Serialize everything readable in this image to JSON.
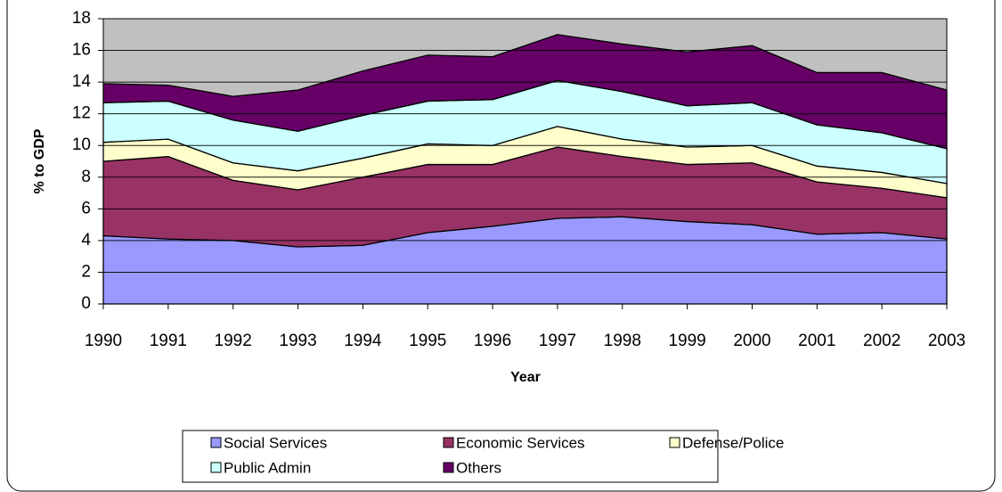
{
  "chart_data": {
    "type": "stacked_area",
    "xlabel": "Year",
    "ylabel": "% to GDP",
    "categories": [
      "1990",
      "1991",
      "1992",
      "1993",
      "1994",
      "1995",
      "1996",
      "1997",
      "1998",
      "1999",
      "2000",
      "2001",
      "2002",
      "2003"
    ],
    "series": [
      {
        "name": "Social Services",
        "color": "#9999ff",
        "values": [
          4.3,
          4.1,
          4.0,
          3.6,
          3.7,
          4.5,
          4.9,
          5.4,
          5.5,
          5.2,
          5.0,
          4.4,
          4.5,
          4.1
        ]
      },
      {
        "name": "Economic Services",
        "color": "#993366",
        "values": [
          4.7,
          5.2,
          3.8,
          3.6,
          4.3,
          4.3,
          3.9,
          4.5,
          3.8,
          3.6,
          3.9,
          3.3,
          2.8,
          2.6
        ]
      },
      {
        "name": "Defense/Police",
        "color": "#ffffcc",
        "values": [
          1.2,
          1.1,
          1.1,
          1.2,
          1.2,
          1.3,
          1.2,
          1.3,
          1.1,
          1.1,
          1.1,
          1.0,
          1.0,
          0.9
        ]
      },
      {
        "name": "Public Admin",
        "color": "#ccffff",
        "values": [
          2.5,
          2.4,
          2.7,
          2.5,
          2.7,
          2.7,
          2.9,
          2.9,
          3.0,
          2.6,
          2.7,
          2.6,
          2.5,
          2.2
        ]
      },
      {
        "name": "Others",
        "color": "#660066",
        "values": [
          1.2,
          1.0,
          1.5,
          2.6,
          2.8,
          2.9,
          2.7,
          2.9,
          3.0,
          3.4,
          3.6,
          3.3,
          3.8,
          3.7
        ]
      }
    ],
    "ylim": [
      0,
      18
    ],
    "yticks": [
      0,
      2,
      4,
      6,
      8,
      10,
      12,
      14,
      16,
      18
    ],
    "grid": true,
    "plot_background": "#c0c0c0",
    "legend": "bottom"
  }
}
